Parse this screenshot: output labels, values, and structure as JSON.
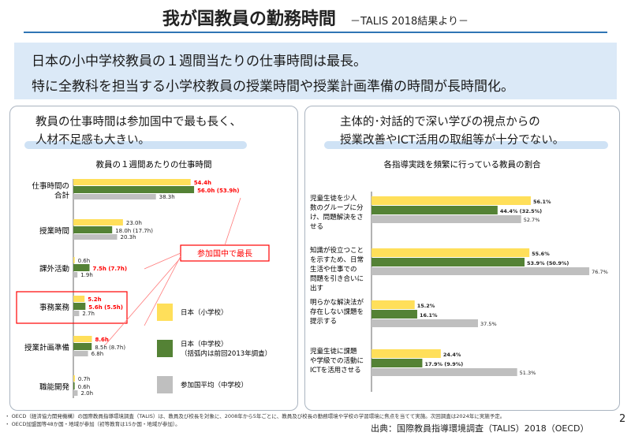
{
  "header": {
    "title": "我が国教員の勤務時間",
    "subtitle": "－TALIS 2018結果より－"
  },
  "banner": {
    "line1": "日本の小中学校教員の１週間当たりの仕事時間は最長。",
    "line2": "特に全教科を担当する小学校教員の授業時間や授業計画準備の時間が長時間化。"
  },
  "left_panel": {
    "heading_line1": "教員の仕事時間は参加国中で最も長く、",
    "heading_line2": "人材不足感も大きい。",
    "callout": "参加国中で最長"
  },
  "right_panel": {
    "heading_line1": "主体的･対話的で深い学びの視点からの",
    "heading_line2": "授業改善やICT活用の取組等が十分でない。"
  },
  "colors": {
    "elementary": "#ffdf5a",
    "junior_high": "#548235",
    "average": "#bfbfbf",
    "highlight_text": "#ff0000",
    "callout_border": "#ff0000"
  },
  "chart_data": [
    {
      "type": "bar",
      "orientation": "horizontal",
      "title": "教員の１週間あたりの仕事時間",
      "categories": [
        "仕事時間の合計",
        "授業時間",
        "課外活動",
        "事務業務",
        "授業計画準備",
        "職能開発"
      ],
      "category_display": [
        [
          "仕事時間の",
          "合計"
        ],
        [
          "授業時間"
        ],
        [
          "課外活動"
        ],
        [
          "事務業務"
        ],
        [
          "授業計画準備"
        ],
        [
          "職能開発"
        ]
      ],
      "series": [
        {
          "name": "日本（小学校）",
          "values": [
            54.4,
            23.0,
            0.6,
            5.2,
            8.6,
            0.7
          ],
          "labels": [
            "54.4h",
            "23.0h",
            "0.6h",
            "5.2h",
            "8.6h",
            "0.7h"
          ],
          "label_highlight": [
            true,
            false,
            false,
            true,
            true,
            false
          ]
        },
        {
          "name": "日本（中学校）",
          "name_note": "（括弧内は前回2013年調査）",
          "values": [
            56.0,
            18.0,
            7.5,
            5.6,
            8.5,
            0.6
          ],
          "labels": [
            "56.0h (53.9h)",
            "18.0h (17.7h)",
            "7.5h (7.7h)",
            "5.6h (5.5h)",
            "8.5h (8.7h)",
            "0.6h"
          ],
          "label_highlight": [
            true,
            false,
            true,
            true,
            false,
            false
          ]
        },
        {
          "name": "参加国平均（中学校）",
          "values": [
            38.3,
            20.3,
            1.9,
            2.7,
            6.8,
            2.0
          ],
          "labels": [
            "38.3h",
            "20.3h",
            "1.9h",
            "2.7h",
            "6.8h",
            "2.0h"
          ],
          "label_highlight": [
            false,
            false,
            false,
            false,
            false,
            false
          ]
        }
      ],
      "xlim": [
        0,
        60
      ],
      "grid": false,
      "legend": "bottom-right",
      "boxed_category": "事務業務"
    },
    {
      "type": "bar",
      "orientation": "horizontal",
      "title": "各指導実践を頻繁に行っている教員の割合",
      "categories": [
        "児童生徒を少人数のグループに分け、問題解決をさせる",
        "知識が役立つことを示すため、日常生活や仕事での問題を引き合いに出す",
        "明らかな解決法が存在しない課題を提示する",
        "児童生徒に課題や学級での活動にICTを活用させる"
      ],
      "category_display": [
        [
          "児童生徒を少人",
          "数のグループに分",
          "け、問題解決をさ",
          "せる"
        ],
        [
          "知識が役立つこと",
          "を示すため、日常",
          "生活や仕事での",
          "問題を引き合いに",
          "出す"
        ],
        [
          "明らかな解決法が",
          "存在しない課題を",
          "提示する"
        ],
        [
          "児童生徒に課題",
          "や学級での活動に",
          "ICTを活用させる"
        ]
      ],
      "series": [
        {
          "name": "日本（小学校）",
          "values": [
            56.1,
            55.6,
            15.2,
            24.4
          ],
          "labels": [
            "56.1%",
            "55.6%",
            "15.2%",
            "24.4%"
          ]
        },
        {
          "name": "日本（中学校）",
          "values": [
            44.4,
            53.9,
            16.1,
            17.9
          ],
          "labels": [
            "44.4% (32.5%)",
            "53.9% (50.9%)",
            "16.1%",
            "17.9% (9.9%)"
          ]
        },
        {
          "name": "参加国平均（中学校）",
          "values": [
            52.7,
            76.7,
            37.5,
            51.3
          ],
          "labels": [
            "52.7%",
            "76.7%",
            "37.5%",
            "51.3%"
          ]
        }
      ],
      "xlim": [
        0,
        80
      ],
      "grid": false
    }
  ],
  "footnotes": {
    "line1": "・ OECD（経済協力開発機構）の国際教員指導環境調査（TALIS）は、教員及び校長を対象に、2008年から5年ごとに、教員及び校長の勤務環境や学校の学習環境に焦点を当てて実施。次回調査は2024年に実施予定。",
    "line2": "・ OECD加盟国等48か国・地域が参加（初等教育は15か国・地域が参加）。"
  },
  "source": "出典：国際教員指導環境調査（TALIS）2018（OECD）",
  "page_number": "2"
}
